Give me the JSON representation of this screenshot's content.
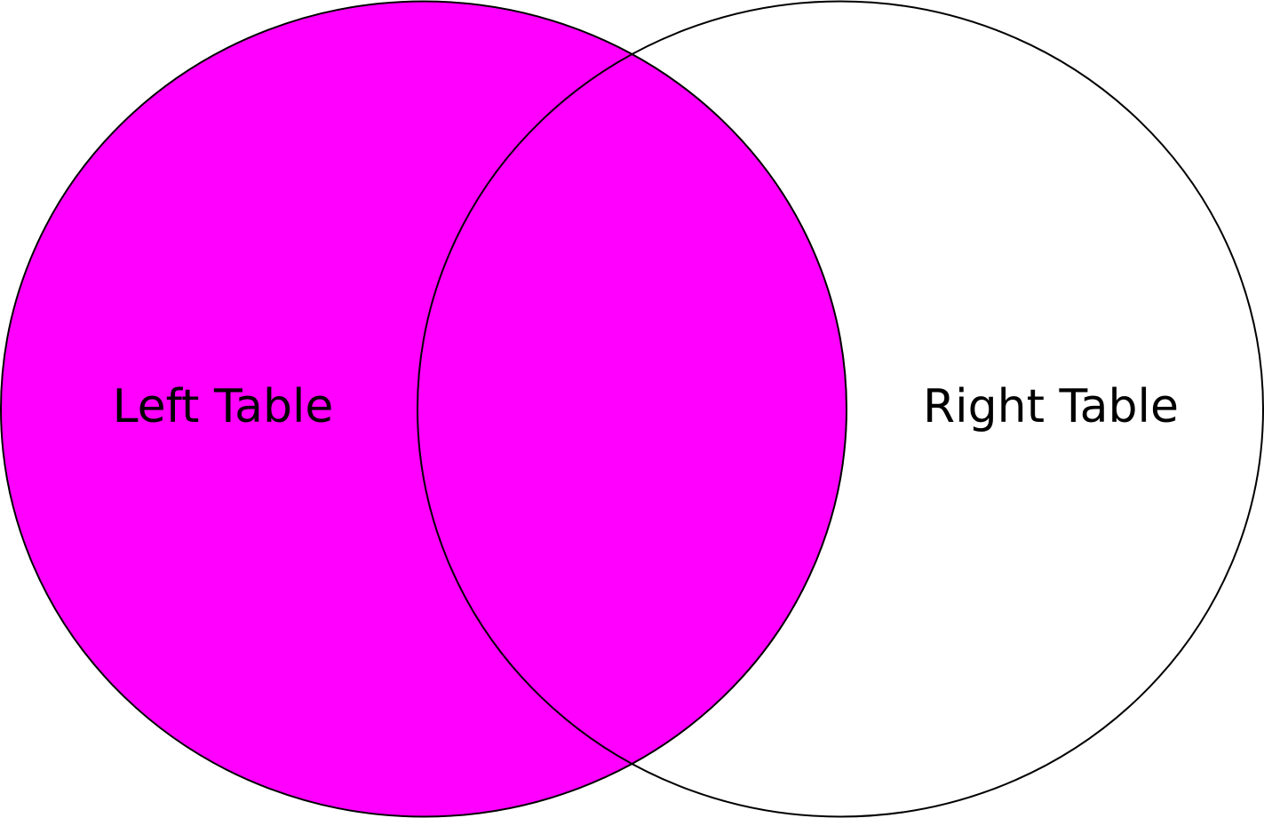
{
  "diagram": {
    "type": "venn",
    "sets": [
      {
        "label": "Left Table",
        "highlighted": true
      },
      {
        "label": "Right Table",
        "highlighted": false
      }
    ],
    "intersection_highlighted": true,
    "colors": {
      "highlight": "#ff00ff",
      "outline": "#000000",
      "background": "#ffffff"
    }
  }
}
